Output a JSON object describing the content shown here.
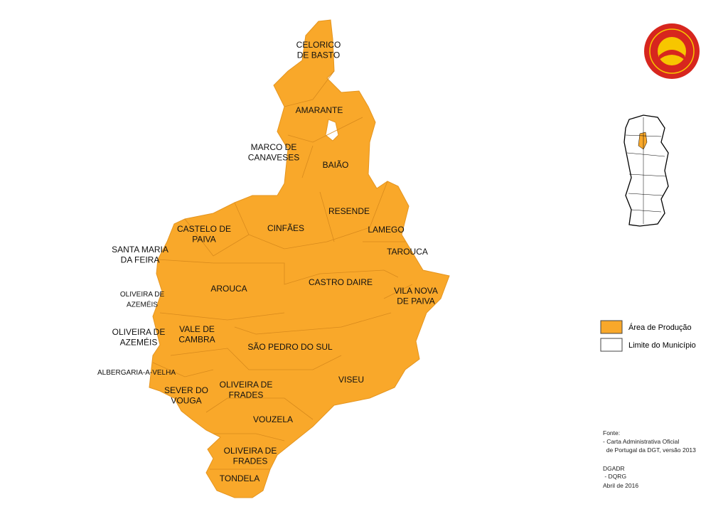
{
  "municipalities": [
    [
      "CELORICO",
      "DE BASTO"
    ],
    [
      "AMARANTE"
    ],
    [
      "MARCO DE",
      "CANAVESES"
    ],
    [
      "BAIÃO"
    ],
    [
      "RESENDE"
    ],
    [
      "CINFÃES"
    ],
    [
      "LAMEGO"
    ],
    [
      "CASTELO DE",
      "PAIVA"
    ],
    [
      "SANTA MARIA",
      "DA FEIRA"
    ],
    [
      "TAROUCA"
    ],
    [
      "CASTRO DAIRE"
    ],
    [
      "AROUCA"
    ],
    [
      "VILA NOVA",
      "DE PAIVA"
    ],
    [
      "OLIVEIRA DE",
      "AZEMÉIS"
    ],
    [
      "OLIVEIRA DE",
      "AZEMÉIS"
    ],
    [
      "VALE DE",
      "CAMBRA"
    ],
    [
      "SÃO PEDRO DO SUL"
    ],
    [
      "ALBERGARIA-A-VELHA"
    ],
    [
      "VISEU"
    ],
    [
      "OLIVEIRA DE",
      "FRADES"
    ],
    [
      "SEVER DO",
      "VOUGA"
    ],
    [
      "VOUZELA"
    ],
    [
      "OLIVEIRA DE",
      "FRADES"
    ],
    [
      "TONDELA"
    ]
  ],
  "legend": [
    "Área de Produção",
    "Limite do Município"
  ],
  "source": [
    "Fonte:",
    "- Carta Administrativa Oficial",
    "  de Portugal da DGT, versão 2013",
    "DGADR",
    " - DQRG",
    "Abril de 2016"
  ]
}
